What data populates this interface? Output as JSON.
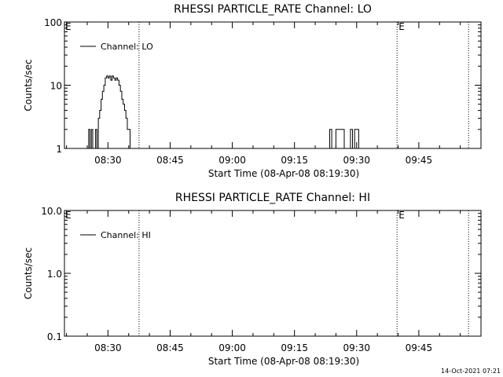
{
  "chart_data": [
    {
      "type": "line",
      "title": "RHESSI PARTICLE_RATE Channel: LO",
      "xlabel": "Start Time (08-Apr-08 08:19:30)",
      "ylabel": "Counts/sec",
      "yscale": "log",
      "ylim": [
        1,
        100
      ],
      "yticks": [
        1,
        10,
        100
      ],
      "ytick_labels": [
        "1",
        "10",
        "100"
      ],
      "xlim": [
        "08:19:30",
        "10:00:00"
      ],
      "xticks": [
        "08:30",
        "08:45",
        "09:00",
        "09:15",
        "09:30",
        "09:45"
      ],
      "legend": "top-left",
      "markers": [
        {
          "time": "08:37:30",
          "label": ""
        },
        {
          "time": "09:39:45",
          "label": "E"
        },
        {
          "time": "09:57:00",
          "label": ""
        }
      ],
      "start_label": "E",
      "series": [
        {
          "name": "Channel: LO",
          "color": "#000000",
          "segments": [
            {
              "t": [
                "08:25:00",
                "08:25:20",
                "08:25:40",
                "08:26:00",
                "08:26:20",
                "08:26:40",
                "08:27:00",
                "08:27:20",
                "08:27:40",
                "08:28:00",
                "08:28:20",
                "08:28:40",
                "08:29:00",
                "08:29:20",
                "08:29:40",
                "08:30:00",
                "08:30:20",
                "08:30:40",
                "08:31:00",
                "08:31:20",
                "08:31:40",
                "08:32:00",
                "08:32:20",
                "08:32:40",
                "08:33:00",
                "08:33:20",
                "08:33:40",
                "08:34:00",
                "08:34:20",
                "08:34:40",
                "08:35:00",
                "08:35:20",
                "08:35:40",
                "08:36:00",
                "08:36:20",
                "08:36:40",
                "08:37:00",
                "08:37:20"
              ],
              "v": [
                1,
                2,
                1,
                2,
                1,
                1,
                2,
                1,
                3,
                4,
                6,
                8,
                10,
                13,
                14,
                13,
                14,
                12,
                14,
                13,
                12,
                13,
                12,
                10,
                8,
                6,
                5,
                4,
                3,
                2,
                2,
                1,
                1,
                1,
                1,
                1,
                1,
                1
              ]
            },
            {
              "t": [
                "09:23:00",
                "09:23:30",
                "09:24:00",
                "09:24:30",
                "09:25:00",
                "09:25:30",
                "09:26:00",
                "09:26:30",
                "09:27:00",
                "09:27:30",
                "09:28:00",
                "09:28:30",
                "09:29:00",
                "09:29:30",
                "09:30:00",
                "09:30:30",
                "09:31:00"
              ],
              "v": [
                1,
                2,
                1,
                1,
                2,
                2,
                2,
                2,
                1,
                1,
                1,
                2,
                1,
                2,
                2,
                1,
                1
              ]
            }
          ]
        }
      ]
    },
    {
      "type": "line",
      "title": "RHESSI PARTICLE_RATE Channel: HI",
      "xlabel": "Start Time (08-Apr-08 08:19:30)",
      "ylabel": "Counts/sec",
      "yscale": "log",
      "ylim": [
        0.1,
        10
      ],
      "yticks": [
        0.1,
        1,
        10
      ],
      "ytick_labels": [
        "0.1",
        "1.0",
        "10.0"
      ],
      "xlim": [
        "08:19:30",
        "10:00:00"
      ],
      "xticks": [
        "08:30",
        "08:45",
        "09:00",
        "09:15",
        "09:30",
        "09:45"
      ],
      "legend": "top-left",
      "markers": [
        {
          "time": "08:37:30",
          "label": ""
        },
        {
          "time": "09:39:45",
          "label": "E"
        },
        {
          "time": "09:57:00",
          "label": ""
        }
      ],
      "start_label": "E",
      "series": [
        {
          "name": "Channel: HI",
          "color": "#000000",
          "segments": []
        }
      ]
    }
  ],
  "footer": {
    "timestamp": "14-Oct-2021 07:21"
  }
}
